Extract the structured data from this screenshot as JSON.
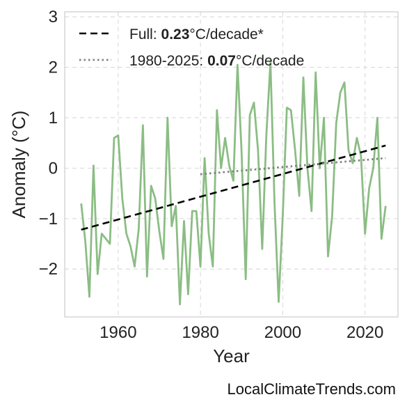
{
  "chart_data": {
    "type": "line",
    "xlabel": "Year",
    "ylabel": "Anomaly (°C)",
    "xlim": [
      1947,
      2028
    ],
    "ylim": [
      -2.95,
      3.1
    ],
    "xticks": [
      1960,
      1980,
      2000,
      2020
    ],
    "yticks": [
      -2,
      -1,
      0,
      1,
      2,
      3
    ],
    "ytick_labels": [
      "−2",
      "−1",
      "0",
      "1",
      "2",
      "3"
    ],
    "grid": true,
    "legend_position": "top-left",
    "series": [
      {
        "kind": "data",
        "color": "#8bbd84",
        "x": [
          1951,
          1952,
          1953,
          1954,
          1955,
          1956,
          1957,
          1958,
          1959,
          1960,
          1961,
          1962,
          1963,
          1964,
          1965,
          1966,
          1967,
          1968,
          1969,
          1970,
          1971,
          1972,
          1973,
          1974,
          1975,
          1976,
          1977,
          1978,
          1979,
          1980,
          1981,
          1982,
          1983,
          1984,
          1985,
          1986,
          1987,
          1988,
          1989,
          1990,
          1991,
          1992,
          1993,
          1994,
          1995,
          1996,
          1997,
          1998,
          1999,
          2000,
          2001,
          2002,
          2003,
          2004,
          2005,
          2006,
          2007,
          2008,
          2009,
          2010,
          2011,
          2012,
          2013,
          2014,
          2015,
          2016,
          2017,
          2018,
          2019,
          2020,
          2021,
          2022,
          2023,
          2024,
          2025
        ],
        "y": [
          -0.7,
          -1.45,
          -2.55,
          0.05,
          -2.1,
          -1.3,
          -1.4,
          -1.5,
          0.6,
          0.65,
          -0.6,
          -1.3,
          -1.55,
          -1.95,
          -1.2,
          0.85,
          -2.15,
          -0.35,
          -0.6,
          -1.25,
          -1.8,
          1.0,
          -1.15,
          -0.75,
          -2.7,
          -1.05,
          -2.5,
          -0.85,
          -0.85,
          -1.95,
          0.2,
          -1.3,
          -1.95,
          1.15,
          0.0,
          0.6,
          0.05,
          -0.25,
          2.05,
          0.3,
          -2.2,
          1.05,
          1.3,
          0.35,
          -1.6,
          0.65,
          2.1,
          -0.7,
          -2.65,
          -0.95,
          1.2,
          1.15,
          0.35,
          -0.55,
          1.8,
          0.0,
          -0.85,
          1.9,
          0.0,
          1.0,
          -1.75,
          -0.95,
          0.9,
          1.5,
          1.7,
          0.35,
          0.1,
          0.6,
          0.25,
          -1.3,
          -0.4,
          0.0,
          1.0,
          -1.4,
          -0.75
        ]
      },
      {
        "kind": "trend-full",
        "name": "Full: {0.23}°C/decade*",
        "label_prefix": "Full: ",
        "label_value": "0.23",
        "label_suffix": "°C/decade*",
        "color": "#000000",
        "dash": "dashed",
        "x": [
          1951,
          2025
        ],
        "y": [
          -1.22,
          0.45
        ]
      },
      {
        "kind": "trend-recent",
        "name": "1980-2025: {0.07}°C/decade",
        "label_prefix": "1980-2025: ",
        "label_value": "0.07",
        "label_suffix": "°C/decade",
        "color": "#808080",
        "dash": "dotted",
        "x": [
          1980,
          2025
        ],
        "y": [
          -0.12,
          0.2
        ]
      }
    ]
  },
  "watermark": "LocalClimateTrends.com"
}
